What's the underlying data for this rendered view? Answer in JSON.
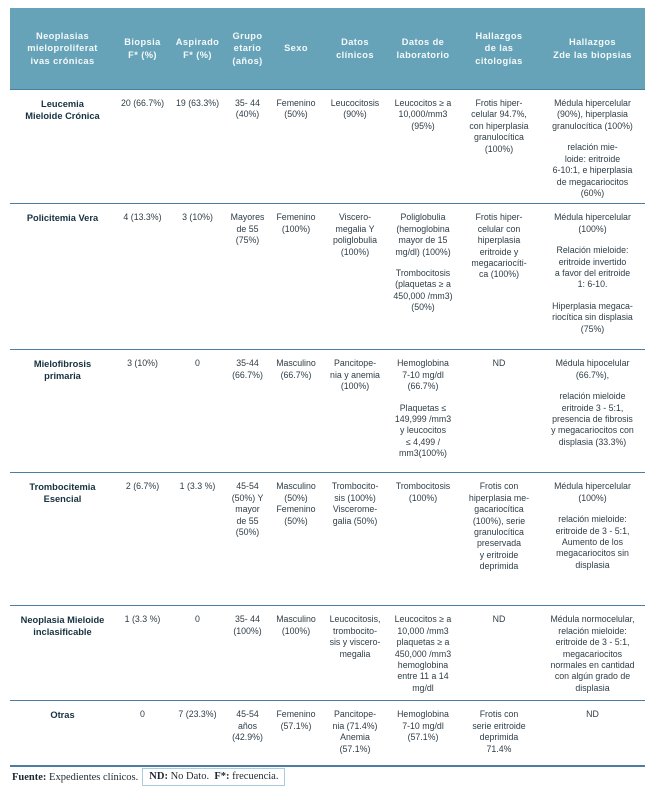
{
  "colors": {
    "header_bg": "#66a3b8",
    "header_text": "#f4f9fa",
    "row_line": "#4d7ea1",
    "body_text": "#2e3d47",
    "label_text": "#16313f",
    "note_border": "#a9cbdc"
  },
  "table": {
    "header": [
      "Neoplasias\nmieloproliferat\nivas crónicas",
      "Biopsia\nF* (%)",
      "Aspirado\nF* (%)",
      "Grupo\netario\n(años)",
      "Sexo",
      "Datos\nclínicos",
      "Datos de\nlaboratorio",
      "Hallazgos\nde las\ncitologías",
      "Hallazgos\nZde las biopsias"
    ],
    "rows": [
      {
        "cells": [
          [
            "Leucemia\nMieloide Crónica"
          ],
          [
            "20 (66.7%)"
          ],
          [
            "19 (63.3%)"
          ],
          [
            "35- 44\n(40%)"
          ],
          [
            "Femenino\n(50%)"
          ],
          [
            "Leucocitosis\n(90%)"
          ],
          [
            "Leucocitos ≥ a\n10,000/mm3\n(95%)"
          ],
          [
            "Frotis hiper-\ncelular 94.7%,\ncon hiperplasia\ngranulocítica\n(100%)"
          ],
          [
            "Médula hipercelular\n(90%), hiperplasia\ngranulocítica (100%)",
            "relación mie-\nloide: eritroide\n6-10:1, e hiperplasia\nde megacariocitos\n(60%)"
          ]
        ]
      },
      {
        "cells": [
          [
            "Policitemia Vera"
          ],
          [
            "4 (13.3%)"
          ],
          [
            "3 (10%)"
          ],
          [
            "Mayores\nde 55\n(75%)"
          ],
          [
            "Femenino\n(100%)"
          ],
          [
            "Viscero-\nmegalia  Y\npoliglobulia\n(100%)"
          ],
          [
            "Poliglobulia\n(hemoglobina\nmayor de 15\nmg/dl) (100%)",
            "Trombocitosis\n(plaquetas ≥ a\n450,000 /mm3)\n(50%)"
          ],
          [
            "Frotis hiper-\ncelular con\nhiperplasia\neritroide y\nmegacariocíti-\nca (100%)"
          ],
          [
            "Médula hipercelular\n(100%)",
            "Relación mieloide:\neritroide invertido\na favor del eritroide\n1: 6-10.",
            "Hiperplasia megaca-\nriocítica sin displasia\n(75%)"
          ]
        ]
      },
      {
        "cells": [
          [
            "Mielofibrosis\nprimaria"
          ],
          [
            "3 (10%)"
          ],
          [
            "0"
          ],
          [
            "35-44\n(66.7%)"
          ],
          [
            "Masculino\n(66.7%)"
          ],
          [
            "Pancitope-\nnia y anemia\n(100%)"
          ],
          [
            "Hemoglobina\n7-10 mg/dl\n(66.7%)",
            "Plaquetas ≤\n149,999 /mm3\ny leucocitos\n≤ 4,499 /\nmm3(100%)"
          ],
          [
            "ND"
          ],
          [
            "Médula hipocelular\n(66.7%),",
            "relación mieloide\neritroide 3 - 5:1,\npresencia de fibrosis\ny megacariocitos con\ndisplasia (33.3%)"
          ]
        ]
      },
      {
        "cells": [
          [
            "Trombocitemia\nEsencial"
          ],
          [
            "2 (6.7%)"
          ],
          [
            "1 (3.3 %)"
          ],
          [
            "45-54\n(50%) Y\nmayor\nde 55\n(50%)"
          ],
          [
            "Masculino\n(50%)\nFemenino\n(50%)"
          ],
          [
            "Trombocito-\nsis (100%)\nViscerome-\ngalia (50%)"
          ],
          [
            "Trombocitosis\n(100%)"
          ],
          [
            "Frotis con\nhiperplasia me-\ngacariocítica\n(100%), serie\ngranulocítica\npreservada\ny eritroide\ndeprimida"
          ],
          [
            "Médula hipercelular\n(100%)",
            "relación mieloide:\neritroide de 3 - 5:1,\nAumento de los\nmegacariocitos sin\ndisplasia"
          ]
        ]
      },
      {
        "cells": [
          [
            "Neoplasia Mieloide\ninclasificable"
          ],
          [
            "1 (3.3 %)"
          ],
          [
            "0"
          ],
          [
            "35- 44\n(100%)"
          ],
          [
            "Masculino\n(100%)"
          ],
          [
            "Leucocitosis,\ntrombocito-\nsis y viscero-\nmegalia"
          ],
          [
            "Leucocitos ≥ a\n10,000 /mm3\nplaquetas ≥ a\n450,000 /mm3\nhemoglobina\nentre 11 a 14\nmg/dl"
          ],
          [
            "ND"
          ],
          [
            "Médula normocelular,\nrelación mieloide:\neritroide de 3 - 5:1,\nmegacariocitos\nnormales en cantidad\ncon algún grado de\ndisplasia"
          ]
        ]
      },
      {
        "cells": [
          [
            "Otras"
          ],
          [
            "0"
          ],
          [
            "7 (23.3%)"
          ],
          [
            "45-54\naños\n(42.9%)"
          ],
          [
            "Femenino\n(57.1%)"
          ],
          [
            "Pancitope-\nnia (71.4%)\nAnemia\n(57.1%)"
          ],
          [
            "Hemoglobina\n7-10 mg/dl\n(57.1%)"
          ],
          [
            "Frotis con\nserie eritroide\ndeprimida\n71.4%"
          ],
          [
            "ND"
          ]
        ]
      }
    ]
  },
  "footer": {
    "fuente_label": "Fuente:",
    "fuente_text": " Expedientes clínicos.",
    "nd_label": "ND:",
    "nd_text": " No Dato.  ",
    "f_label": "F*:",
    "f_text": " frecuencia."
  }
}
